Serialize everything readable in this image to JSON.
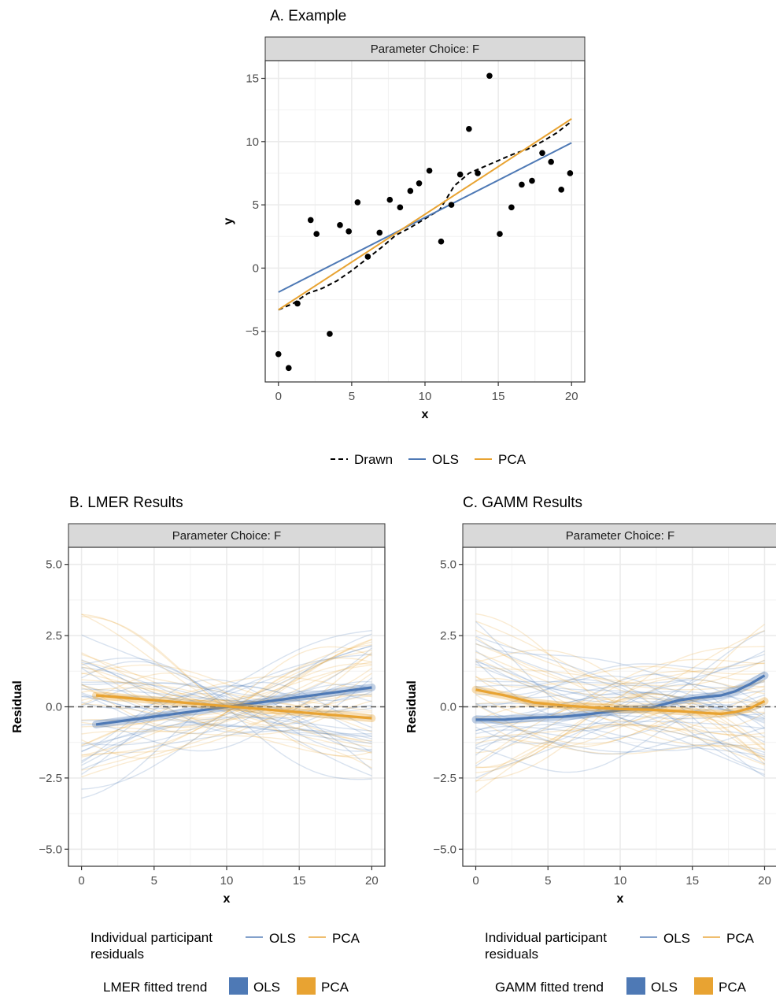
{
  "colors": {
    "ols": "#4e79b5",
    "pca": "#e8a332",
    "drawn": "#000000",
    "strip": "#d9d9d9",
    "grid": "#ebebeb",
    "zero_line": "#555555"
  },
  "chart_data": [
    {
      "type": "scatter",
      "title": "A. Example",
      "facet_label": "Parameter Choice: F",
      "xlabel": "x",
      "ylabel": "y",
      "xlim": [
        0,
        20
      ],
      "ylim": [
        -8,
        15
      ],
      "x_ticks": [
        "0",
        "5",
        "10",
        "15",
        "20"
      ],
      "y_ticks": [
        "−5",
        "0",
        "5",
        "10",
        "15"
      ],
      "points": {
        "x": [
          0.0,
          0.7,
          1.3,
          2.2,
          2.6,
          3.5,
          4.2,
          4.8,
          5.4,
          6.1,
          6.9,
          7.6,
          8.3,
          9.0,
          9.6,
          10.3,
          11.1,
          11.8,
          12.4,
          13.0,
          13.6,
          14.4,
          15.1,
          15.9,
          16.6,
          17.3,
          18.0,
          18.6,
          19.3,
          19.9
        ],
        "y": [
          -6.8,
          -7.9,
          -2.8,
          3.8,
          2.7,
          -5.2,
          3.4,
          2.9,
          5.2,
          0.9,
          2.8,
          5.4,
          4.8,
          6.1,
          6.7,
          7.7,
          2.1,
          5.0,
          7.4,
          11.0,
          7.5,
          15.2,
          2.7,
          4.8,
          6.6,
          6.9,
          9.1,
          8.4,
          6.2,
          7.5
        ]
      },
      "series": [
        {
          "name": "Drawn",
          "x": [
            0,
            1,
            2,
            3,
            4,
            5,
            6,
            7,
            8,
            9,
            10,
            11,
            12,
            13,
            14,
            15,
            16,
            17,
            18,
            19,
            20
          ],
          "y": [
            -3.3,
            -2.8,
            -2.0,
            -1.6,
            -1.0,
            -0.2,
            0.7,
            1.6,
            2.6,
            3.2,
            3.9,
            4.6,
            6.5,
            7.5,
            8.0,
            8.5,
            9.0,
            9.4,
            10.0,
            10.7,
            11.6
          ]
        },
        {
          "name": "OLS",
          "x": [
            0,
            20
          ],
          "y": [
            -1.9,
            9.9
          ]
        },
        {
          "name": "PCA",
          "x": [
            0,
            20
          ],
          "y": [
            -3.3,
            11.8
          ]
        }
      ],
      "legend": {
        "position": "bottom",
        "items": [
          "Drawn",
          "OLS",
          "PCA"
        ]
      }
    },
    {
      "type": "line",
      "title": "B. LMER Results",
      "facet_label": "Parameter Choice: F",
      "xlabel": "x",
      "ylabel": "Residual",
      "xlim": [
        0,
        20
      ],
      "ylim": [
        -5,
        5
      ],
      "x_ticks": [
        "0",
        "5",
        "10",
        "15",
        "20"
      ],
      "y_ticks": [
        "−5.0",
        "−2.5",
        "0.0",
        "2.5",
        "5.0"
      ],
      "hline": 0,
      "series": [
        {
          "name": "OLS",
          "x": [
            1,
            20
          ],
          "y": [
            -0.62,
            0.68
          ]
        },
        {
          "name": "PCA",
          "x": [
            1,
            20
          ],
          "y": [
            0.4,
            -0.4
          ]
        }
      ],
      "legend": {
        "position": "bottom",
        "individual_title": "Individual participant residuals",
        "individual_title_lines": [
          "Individual participant",
          "residuals"
        ],
        "fitted_title": "LMER fitted trend",
        "items": [
          "OLS",
          "PCA"
        ]
      }
    },
    {
      "type": "line",
      "title": "C. GAMM Results",
      "facet_label": "Parameter Choice: F",
      "xlabel": "x",
      "ylabel": "Residual",
      "xlim": [
        0,
        20
      ],
      "ylim": [
        -5,
        5
      ],
      "x_ticks": [
        "0",
        "5",
        "10",
        "15",
        "20"
      ],
      "y_ticks": [
        "−5.0",
        "−2.5",
        "0.0",
        "2.5",
        "5.0"
      ],
      "hline": 0,
      "series": [
        {
          "name": "OLS",
          "x": [
            0,
            2,
            4,
            6,
            8,
            10,
            12,
            14,
            15,
            17,
            18,
            19,
            20
          ],
          "y": [
            -0.45,
            -0.45,
            -0.38,
            -0.35,
            -0.25,
            -0.12,
            -0.05,
            0.22,
            0.3,
            0.4,
            0.55,
            0.8,
            1.1
          ]
        },
        {
          "name": "PCA",
          "x": [
            0,
            2,
            4,
            6,
            8,
            10,
            12,
            14,
            16,
            17,
            18,
            19,
            20
          ],
          "y": [
            0.6,
            0.4,
            0.15,
            0.05,
            -0.02,
            -0.08,
            -0.1,
            -0.15,
            -0.22,
            -0.25,
            -0.18,
            -0.05,
            0.2
          ]
        }
      ],
      "legend": {
        "position": "bottom",
        "individual_title": "Individual participant residuals",
        "individual_title_lines": [
          "Individual participant",
          "residuals"
        ],
        "fitted_title": "GAMM fitted trend",
        "items": [
          "OLS",
          "PCA"
        ]
      }
    }
  ]
}
